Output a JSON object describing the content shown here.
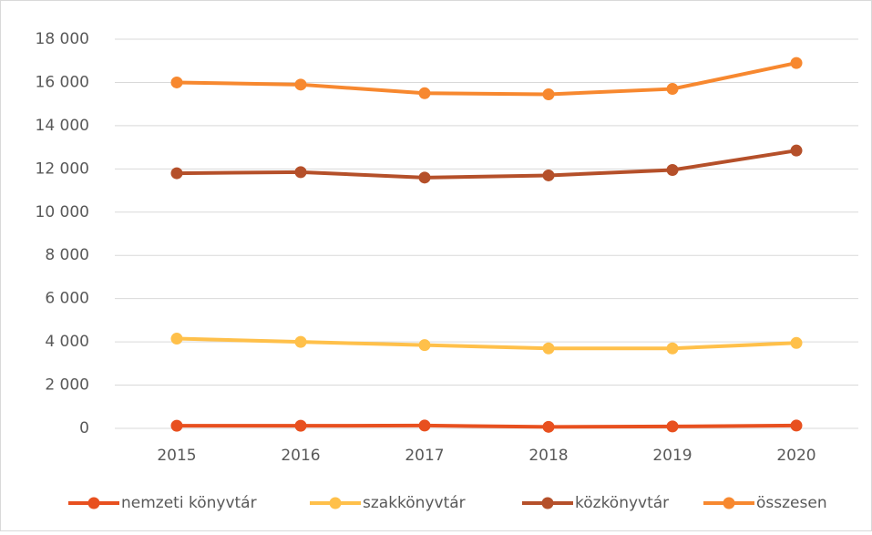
{
  "chart_data": {
    "type": "line",
    "categories": [
      "2015",
      "2016",
      "2017",
      "2018",
      "2019",
      "2020"
    ],
    "series": [
      {
        "name": "nemzeti könyvtár",
        "color": "#e8501f",
        "values": [
          120,
          120,
          130,
          70,
          90,
          130
        ]
      },
      {
        "name": "szakkönyvtár",
        "color": "#ffc04a",
        "values": [
          4150,
          4000,
          3850,
          3700,
          3700,
          3950
        ]
      },
      {
        "name": "közkönyvtár",
        "color": "#b5502a",
        "values": [
          11800,
          11850,
          11600,
          11700,
          11950,
          12850
        ]
      },
      {
        "name": "összesen",
        "color": "#f7882f",
        "values": [
          16000,
          15900,
          15500,
          15450,
          15700,
          16900
        ]
      }
    ],
    "ylim": [
      0,
      18000
    ],
    "yticks": [
      0,
      {
        "value": 2000,
        "label": "2 000"
      },
      {
        "value": 4000,
        "label": "4 000"
      },
      {
        "value": 6000,
        "label": "6 000"
      },
      {
        "value": 8000,
        "label": "8 000"
      },
      {
        "value": 10000,
        "label": "10 000"
      },
      {
        "value": 12000,
        "label": "12 000"
      },
      {
        "value": 14000,
        "label": "14 000"
      },
      {
        "value": 16000,
        "label": "16 000"
      },
      {
        "value": 18000,
        "label": "18 000"
      }
    ],
    "grid": true,
    "legend": "bottom"
  }
}
